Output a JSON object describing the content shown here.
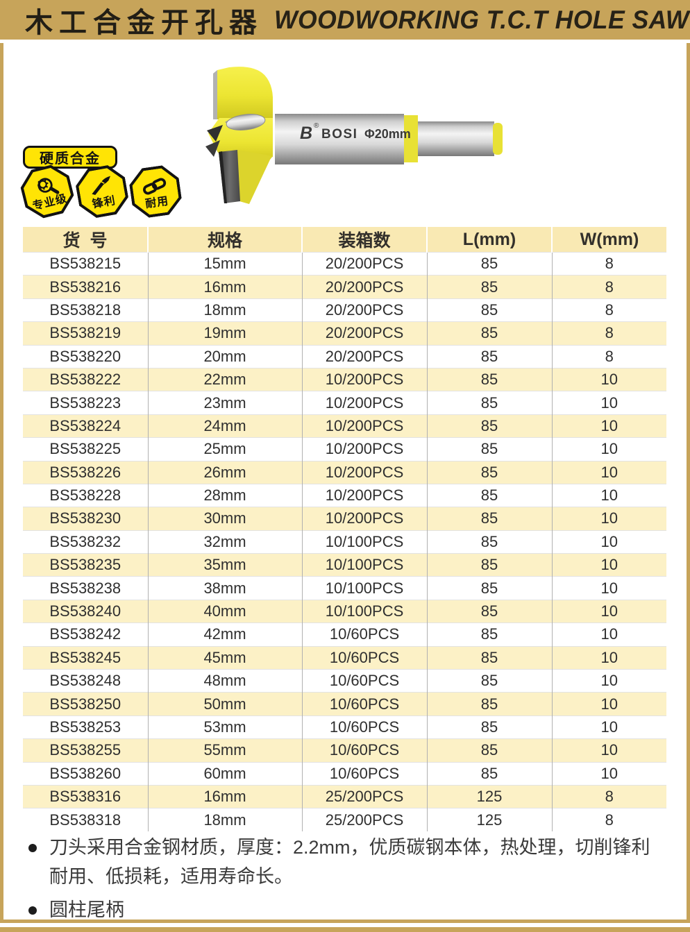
{
  "header": {
    "title_zh": "木工合金开孔器",
    "title_en": "WOODWORKING T.C.T HOLE SAW"
  },
  "product": {
    "logo_letter": "B",
    "reg_mark": "®",
    "brand": "BOSI",
    "diameter_label": "Φ20mm",
    "tag": "硬质合金",
    "badges": [
      {
        "icon": "magnifier-gear-icon",
        "label": "专业级"
      },
      {
        "icon": "knife-icon",
        "label": "锋利"
      },
      {
        "icon": "chain-link-icon",
        "label": "耐用"
      }
    ]
  },
  "table": {
    "columns": [
      "货  号",
      "规格",
      "装箱数",
      "L(mm)",
      "W(mm)"
    ],
    "rows": [
      [
        "BS538215",
        "15mm",
        "20/200PCS",
        "85",
        "8"
      ],
      [
        "BS538216",
        "16mm",
        "20/200PCS",
        "85",
        "8"
      ],
      [
        "BS538218",
        "18mm",
        "20/200PCS",
        "85",
        "8"
      ],
      [
        "BS538219",
        "19mm",
        "20/200PCS",
        "85",
        "8"
      ],
      [
        "BS538220",
        "20mm",
        "20/200PCS",
        "85",
        "8"
      ],
      [
        "BS538222",
        "22mm",
        "10/200PCS",
        "85",
        "10"
      ],
      [
        "BS538223",
        "23mm",
        "10/200PCS",
        "85",
        "10"
      ],
      [
        "BS538224",
        "24mm",
        "10/200PCS",
        "85",
        "10"
      ],
      [
        "BS538225",
        "25mm",
        "10/200PCS",
        "85",
        "10"
      ],
      [
        "BS538226",
        "26mm",
        "10/200PCS",
        "85",
        "10"
      ],
      [
        "BS538228",
        "28mm",
        "10/200PCS",
        "85",
        "10"
      ],
      [
        "BS538230",
        "30mm",
        "10/200PCS",
        "85",
        "10"
      ],
      [
        "BS538232",
        "32mm",
        "10/100PCS",
        "85",
        "10"
      ],
      [
        "BS538235",
        "35mm",
        "10/100PCS",
        "85",
        "10"
      ],
      [
        "BS538238",
        "38mm",
        "10/100PCS",
        "85",
        "10"
      ],
      [
        "BS538240",
        "40mm",
        "10/100PCS",
        "85",
        "10"
      ],
      [
        "BS538242",
        "42mm",
        "10/60PCS",
        "85",
        "10"
      ],
      [
        "BS538245",
        "45mm",
        "10/60PCS",
        "85",
        "10"
      ],
      [
        "BS538248",
        "48mm",
        "10/60PCS",
        "85",
        "10"
      ],
      [
        "BS538250",
        "50mm",
        "10/60PCS",
        "85",
        "10"
      ],
      [
        "BS538253",
        "53mm",
        "10/60PCS",
        "85",
        "10"
      ],
      [
        "BS538255",
        "55mm",
        "10/60PCS",
        "85",
        "10"
      ],
      [
        "BS538260",
        "60mm",
        "10/60PCS",
        "85",
        "10"
      ],
      [
        "BS538316",
        "16mm",
        "25/200PCS",
        "125",
        "8"
      ],
      [
        "BS538318",
        "18mm",
        "25/200PCS",
        "125",
        "8"
      ]
    ]
  },
  "notes": [
    "刀头采用合金钢材质，厚度：2.2mm，优质碳钢本体，热处理，切削锋利耐用、低损耗，适用寿命长。",
    "圆柱尾柄"
  ],
  "colors": {
    "banner_gold": "#C7A45A",
    "badge_yellow": "#FFE405",
    "drill_yellow": "#EDE73B",
    "table_header_bg": "#F9E9B3",
    "table_alt_row_bg": "#FCF1C6"
  }
}
